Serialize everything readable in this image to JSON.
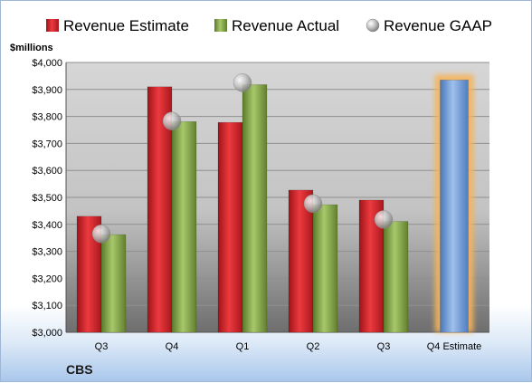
{
  "chart_data": {
    "type": "bar",
    "company": "CBS",
    "unit_label": "$millions",
    "categories": [
      "Q3",
      "Q4",
      "Q1",
      "Q2",
      "Q3",
      "Q4 Estimate"
    ],
    "series": [
      {
        "name": "Revenue Estimate",
        "kind": "bar",
        "color": "#d9262e",
        "values": [
          3430,
          3910,
          3778,
          3527,
          3490,
          null
        ]
      },
      {
        "name": "Revenue Actual",
        "kind": "bar",
        "color": "#86a84a",
        "values": [
          3362,
          3781,
          3918,
          3473,
          3411,
          null
        ]
      },
      {
        "name": "Revenue GAAP",
        "kind": "point",
        "color": "#b8b8b8",
        "values": [
          3365,
          3783,
          3925,
          3477,
          3418,
          null
        ]
      },
      {
        "name": "Q4 Estimate",
        "kind": "bar",
        "color": "#6c9bd8",
        "highlight": "#f5b45a",
        "values": [
          null,
          null,
          null,
          null,
          null,
          3935
        ],
        "show_in_legend": false
      }
    ],
    "yticks": [
      "$3,000",
      "$3,100",
      "$3,200",
      "$3,300",
      "$3,400",
      "$3,500",
      "$3,600",
      "$3,700",
      "$3,800",
      "$3,900",
      "$4,000"
    ],
    "ylim": [
      3000,
      4000
    ],
    "grid": true,
    "legend_position": "top"
  }
}
